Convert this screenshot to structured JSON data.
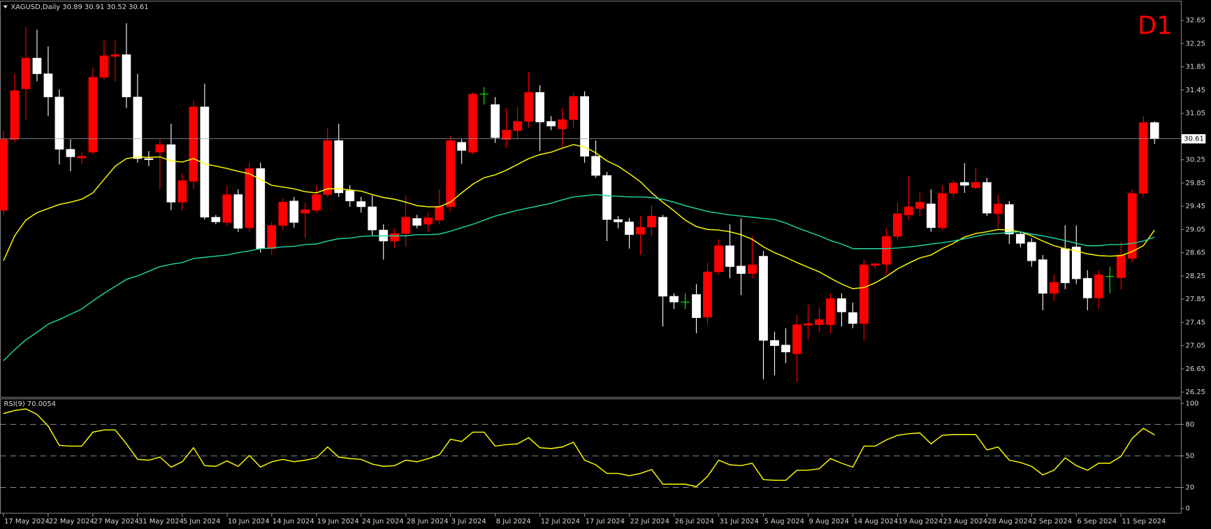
{
  "chart_data": [
    {
      "type": "candlestick",
      "title": "XAGUSD,Daily  30.89 30.91 30.52 30.61",
      "timeframe": "D1",
      "categories": [
        "17 May 2024",
        null,
        null,
        null,
        "22 May 2024",
        null,
        null,
        null,
        "27 May 2024",
        null,
        null,
        null,
        "31 May 2024",
        null,
        null,
        null,
        "5 Jun 2024",
        null,
        null,
        null,
        "10 Jun 2024",
        null,
        null,
        null,
        "14 Jun 2024",
        null,
        null,
        null,
        "19 Jun 2024",
        null,
        null,
        null,
        "24 Jun 2024",
        null,
        null,
        null,
        "28 Jun 2024",
        null,
        null,
        null,
        "3 Jul 2024",
        null,
        null,
        null,
        "8 Jul 2024",
        null,
        null,
        null,
        "12 Jul 2024",
        null,
        null,
        null,
        "17 Jul 2024",
        null,
        null,
        null,
        "22 Jul 2024",
        null,
        null,
        null,
        "26 Jul 2024",
        null,
        null,
        null,
        "31 Jul 2024",
        null,
        null,
        null,
        "5 Aug 2024",
        null,
        null,
        null,
        "9 Aug 2024",
        null,
        null,
        null,
        "14 Aug 2024",
        null,
        null,
        null,
        "19 Aug 2024",
        null,
        null,
        null,
        "23 Aug 2024",
        null,
        null,
        null,
        "28 Aug 2024",
        null,
        null,
        null,
        "2 Sep 2024",
        null,
        null,
        null,
        "6 Sep 2024",
        null,
        null,
        null,
        "11 Sep 2024",
        null,
        null,
        null
      ],
      "open": [
        29.38,
        30.6,
        31.47,
        32.0,
        31.73,
        31.33,
        30.43,
        30.28,
        30.38,
        31.67,
        32.03,
        32.06,
        31.33,
        30.27,
        30.38,
        30.51,
        29.52,
        29.88,
        31.16,
        29.26,
        29.17,
        29.65,
        29.08,
        30.1,
        28.72,
        29.12,
        29.54,
        29.33,
        29.38,
        29.65,
        30.58,
        29.72,
        29.53,
        29.44,
        29.04,
        28.85,
        28.98,
        29.24,
        29.14,
        29.21,
        29.44,
        30.55,
        30.38,
        31.38,
        31.2,
        30.6,
        30.75,
        30.91,
        31.41,
        30.91,
        30.78,
        30.94,
        31.34,
        30.31,
        29.98,
        29.22,
        29.18,
        28.97,
        29.09,
        29.26,
        27.9,
        27.8,
        27.93,
        27.54,
        28.32,
        28.77,
        28.42,
        28.29,
        28.59,
        27.14,
        27.06,
        26.91,
        27.4,
        27.41,
        27.41,
        27.86,
        27.62,
        27.43,
        28.43,
        28.45,
        28.93,
        29.3,
        29.41,
        29.49,
        29.08,
        29.67,
        29.86,
        29.77,
        29.86,
        29.32,
        29.48,
        28.97,
        28.83,
        28.53,
        27.95,
        28.72,
        28.75,
        28.21,
        27.87,
        28.24,
        28.22,
        28.55,
        29.67,
        30.89
      ],
      "high": [
        30.75,
        31.73,
        32.53,
        32.49,
        32.2,
        31.46,
        30.6,
        30.38,
        31.83,
        32.3,
        32.3,
        32.6,
        31.73,
        30.4,
        30.6,
        30.87,
        30.01,
        31.27,
        31.56,
        29.3,
        29.81,
        29.74,
        30.2,
        30.2,
        29.18,
        29.58,
        29.61,
        29.51,
        29.81,
        30.79,
        30.87,
        29.81,
        29.61,
        29.64,
        29.14,
        29.07,
        29.64,
        29.3,
        29.34,
        29.74,
        30.67,
        30.6,
        31.41,
        31.5,
        31.33,
        31.14,
        31.16,
        31.76,
        31.53,
        31.0,
        31.14,
        31.4,
        31.43,
        30.58,
        30.04,
        29.28,
        29.25,
        29.28,
        29.46,
        29.3,
        27.95,
        27.95,
        28.11,
        28.48,
        28.88,
        29.14,
        29.24,
        28.94,
        28.68,
        27.29,
        27.35,
        27.58,
        27.75,
        27.71,
        27.95,
        27.95,
        27.79,
        28.53,
        28.47,
        29.07,
        29.52,
        29.97,
        29.7,
        29.74,
        29.81,
        29.9,
        30.19,
        30.1,
        29.94,
        29.65,
        29.54,
        29.01,
        28.9,
        28.61,
        28.28,
        29.12,
        29.12,
        28.35,
        28.35,
        28.41,
        28.84,
        29.74,
        31.0,
        30.91
      ],
      "low": [
        29.3,
        30.55,
        30.94,
        31.6,
        31.0,
        30.17,
        30.05,
        30.18,
        30.35,
        31.63,
        31.6,
        31.14,
        30.2,
        30.14,
        29.74,
        29.38,
        29.38,
        29.74,
        29.22,
        29.14,
        29.12,
        29.01,
        29.01,
        28.65,
        28.61,
        29.04,
        29.08,
        28.9,
        29.34,
        29.61,
        29.61,
        29.44,
        29.34,
        28.95,
        28.53,
        28.72,
        28.75,
        29.07,
        29.01,
        29.14,
        29.36,
        30.18,
        30.34,
        31.2,
        30.54,
        30.45,
        30.6,
        30.8,
        30.4,
        30.76,
        30.47,
        30.8,
        30.2,
        29.94,
        28.85,
        29.07,
        28.72,
        28.61,
        28.93,
        27.38,
        27.68,
        27.68,
        27.26,
        27.42,
        28.27,
        28.21,
        27.92,
        28.21,
        26.47,
        26.54,
        26.75,
        26.42,
        27.15,
        27.28,
        27.26,
        27.38,
        27.35,
        27.13,
        28.38,
        28.27,
        28.88,
        29.21,
        29.28,
        29.01,
        29.04,
        29.6,
        29.68,
        29.74,
        29.28,
        29.08,
        28.8,
        28.74,
        28.41,
        27.66,
        27.82,
        28.02,
        28.11,
        27.66,
        27.68,
        27.95,
        28.02,
        28.48,
        29.62,
        30.52
      ],
      "close": [
        30.6,
        31.44,
        32.0,
        31.73,
        31.33,
        30.43,
        30.3,
        30.31,
        31.67,
        32.04,
        32.06,
        31.33,
        30.27,
        30.25,
        30.51,
        29.52,
        29.89,
        31.16,
        29.26,
        29.18,
        29.65,
        29.07,
        30.1,
        28.72,
        29.12,
        29.52,
        29.17,
        29.39,
        29.65,
        30.58,
        29.68,
        29.54,
        29.44,
        29.04,
        28.85,
        28.98,
        29.26,
        29.12,
        29.25,
        29.45,
        30.58,
        30.41,
        31.38,
        31.38,
        30.63,
        30.76,
        30.91,
        31.41,
        30.9,
        30.83,
        30.94,
        31.34,
        30.31,
        29.98,
        29.22,
        29.18,
        28.96,
        29.09,
        29.28,
        27.9,
        27.8,
        27.8,
        27.53,
        28.32,
        28.77,
        28.41,
        28.29,
        28.44,
        27.14,
        27.05,
        26.94,
        27.41,
        27.43,
        27.5,
        27.86,
        27.63,
        27.43,
        28.44,
        28.46,
        28.93,
        29.32,
        29.44,
        29.52,
        29.08,
        29.67,
        29.85,
        29.81,
        29.86,
        29.33,
        29.49,
        28.97,
        28.81,
        28.51,
        27.95,
        28.14,
        28.13,
        28.2,
        27.87,
        28.27,
        28.24,
        28.61,
        29.67,
        30.89,
        30.61
      ],
      "up_color": "#ff0000",
      "down_color": "#ffffff",
      "doji_color": "#00ff00",
      "overlays": [
        {
          "color": "#ffff00",
          "values": [
            28.51,
            28.94,
            29.21,
            29.34,
            29.41,
            29.48,
            29.52,
            29.57,
            29.68,
            29.91,
            30.14,
            30.27,
            30.3,
            30.29,
            30.3,
            30.23,
            30.21,
            30.27,
            30.18,
            30.14,
            30.1,
            30.05,
            30.01,
            29.91,
            29.81,
            29.78,
            29.75,
            29.7,
            29.68,
            29.75,
            29.75,
            29.73,
            29.71,
            29.65,
            29.6,
            29.57,
            29.52,
            29.46,
            29.44,
            29.44,
            29.52,
            29.68,
            29.83,
            29.94,
            29.99,
            30.07,
            30.17,
            30.27,
            30.34,
            30.38,
            30.45,
            30.51,
            30.47,
            30.37,
            30.23,
            30.14,
            30.01,
            29.87,
            29.68,
            29.52,
            29.37,
            29.21,
            29.1,
            29.05,
            29.04,
            29.01,
            28.96,
            28.88,
            28.75,
            28.65,
            28.57,
            28.48,
            28.4,
            28.32,
            28.21,
            28.11,
            28.03,
            28.05,
            28.13,
            28.24,
            28.37,
            28.47,
            28.56,
            28.61,
            28.72,
            28.81,
            28.92,
            28.98,
            29.01,
            29.05,
            29.04,
            29.01,
            28.94,
            28.85,
            28.77,
            28.72,
            28.68,
            28.63,
            28.6,
            28.59,
            28.6,
            28.67,
            28.77,
            29.04
          ]
        },
        {
          "color": "#1fd6a6",
          "values": [
            26.79,
            26.98,
            27.15,
            27.28,
            27.42,
            27.5,
            27.59,
            27.68,
            27.82,
            27.95,
            28.07,
            28.19,
            28.25,
            28.33,
            28.41,
            28.45,
            28.48,
            28.55,
            28.57,
            28.59,
            28.61,
            28.65,
            28.68,
            28.72,
            28.73,
            28.75,
            28.76,
            28.79,
            28.8,
            28.85,
            28.89,
            28.9,
            28.93,
            28.94,
            28.94,
            28.94,
            28.94,
            28.96,
            28.96,
            28.97,
            29.02,
            29.08,
            29.14,
            29.21,
            29.28,
            29.33,
            29.38,
            29.42,
            29.46,
            29.5,
            29.56,
            29.61,
            29.63,
            29.65,
            29.63,
            29.62,
            29.61,
            29.61,
            29.6,
            29.57,
            29.52,
            29.46,
            29.41,
            29.36,
            29.33,
            29.3,
            29.28,
            29.26,
            29.24,
            29.22,
            29.16,
            29.08,
            29.01,
            28.94,
            28.86,
            28.8,
            28.72,
            28.72,
            28.72,
            28.72,
            28.73,
            28.75,
            28.77,
            28.8,
            28.82,
            28.85,
            28.89,
            28.93,
            28.97,
            28.98,
            29.0,
            29.01,
            28.97,
            28.94,
            28.9,
            28.86,
            28.81,
            28.77,
            28.77,
            28.79,
            28.79,
            28.81,
            28.85,
            28.92
          ]
        }
      ],
      "current_price": 30.61,
      "ylim": [
        26.18,
        32.96
      ],
      "yticks": [
        32.65,
        32.25,
        31.85,
        31.45,
        31.05,
        30.25,
        29.85,
        29.45,
        29.05,
        28.65,
        28.25,
        27.85,
        27.45,
        27.05,
        26.65,
        26.25
      ]
    },
    {
      "type": "line",
      "title": "RSI(9) 70.0054",
      "color": "#ffff00",
      "values": [
        90.4,
        93.3,
        94.8,
        89.6,
        78.5,
        60.0,
        59.3,
        59.3,
        72.6,
        74.8,
        74.8,
        61.5,
        46.7,
        45.9,
        48.9,
        39.3,
        44.4,
        57.8,
        40.7,
        40.0,
        45.2,
        40.0,
        50.4,
        39.3,
        44.4,
        46.7,
        44.4,
        45.9,
        48.1,
        58.5,
        48.9,
        47.4,
        46.7,
        42.2,
        40.0,
        40.7,
        45.9,
        44.4,
        47.4,
        51.1,
        65.9,
        63.7,
        72.6,
        72.6,
        59.3,
        60.7,
        61.5,
        67.4,
        57.8,
        57.0,
        58.5,
        63.0,
        45.9,
        41.5,
        33.3,
        33.3,
        31.1,
        33.3,
        37.0,
        23.0,
        23.0,
        23.0,
        20.7,
        30.4,
        45.9,
        41.5,
        40.7,
        43.0,
        27.4,
        26.7,
        26.7,
        36.3,
        36.3,
        37.8,
        47.4,
        43.0,
        39.3,
        59.3,
        59.3,
        65.2,
        69.6,
        71.1,
        71.9,
        61.5,
        69.6,
        70.4,
        70.4,
        70.4,
        55.6,
        58.5,
        45.9,
        43.7,
        40.0,
        31.9,
        36.3,
        48.1,
        40.7,
        36.3,
        43.0,
        43.0,
        49.6,
        66.7,
        76.3,
        70.0054
      ],
      "levels": [
        80,
        50,
        20
      ],
      "ylim": [
        -5,
        104
      ],
      "yticks": [
        100,
        80,
        50,
        20,
        0
      ]
    }
  ]
}
